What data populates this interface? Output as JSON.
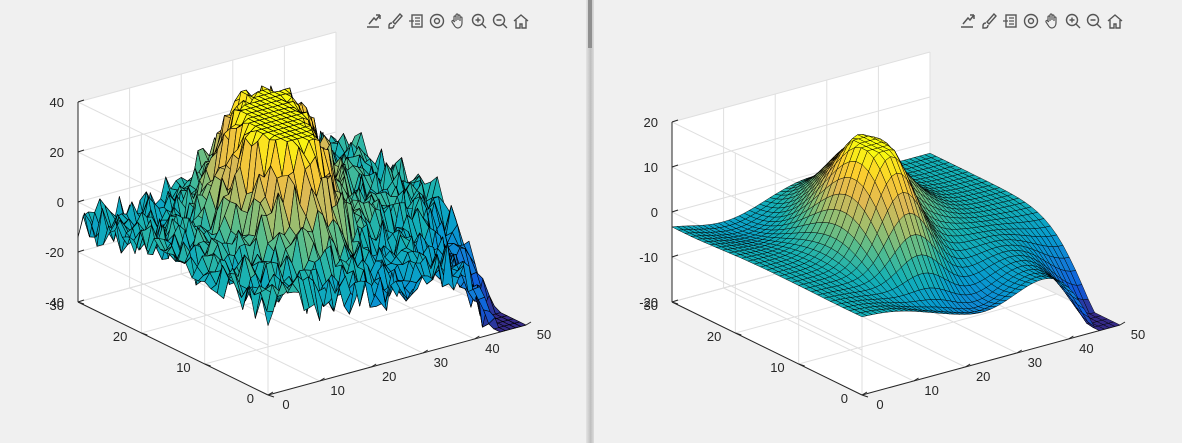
{
  "window": {
    "toolbar_icons": [
      "export-icon",
      "brush-icon",
      "data-tips-icon",
      "rotate-3d-icon",
      "pan-icon",
      "zoom-in-icon",
      "zoom-out-icon",
      "home-icon"
    ]
  },
  "chart_data": [
    {
      "type": "surface",
      "title": "",
      "xlabel": "",
      "ylabel": "",
      "zlabel": "",
      "xlim": [
        0,
        50
      ],
      "ylim": [
        0,
        30
      ],
      "zlim": [
        -40,
        40
      ],
      "x_ticks": [
        "0",
        "10",
        "20",
        "30",
        "40",
        "50"
      ],
      "y_ticks": [
        "0",
        "10",
        "20",
        "30"
      ],
      "z_ticks": [
        "-40",
        "-20",
        "0",
        "20",
        "40"
      ],
      "grid": true,
      "colormap": "parula",
      "edge_color": "#000000",
      "surface": "noisy",
      "mesh_size": [
        50,
        30
      ],
      "z_range_shown": [
        -33,
        35
      ],
      "peaks": [
        {
          "x": 19,
          "y": 13,
          "z": 35
        },
        {
          "x": 27,
          "y": 21,
          "z": 28
        }
      ],
      "low_corner": {
        "x": 50,
        "y": 0,
        "z": -33
      }
    },
    {
      "type": "surface",
      "title": "",
      "xlabel": "",
      "ylabel": "",
      "zlabel": "",
      "xlim": [
        0,
        50
      ],
      "ylim": [
        0,
        30
      ],
      "zlim": [
        -20,
        20
      ],
      "x_ticks": [
        "0",
        "10",
        "20",
        "30",
        "40",
        "50"
      ],
      "y_ticks": [
        "0",
        "10",
        "20",
        "30"
      ],
      "z_ticks": [
        "-20",
        "-10",
        "0",
        "10",
        "20"
      ],
      "grid": true,
      "colormap": "parula",
      "edge_color": "#000000",
      "surface": "smooth",
      "mesh_size": [
        50,
        30
      ],
      "z_range_shown": [
        -21,
        20
      ],
      "peaks": [
        {
          "x": 19,
          "y": 13,
          "z": 20
        },
        {
          "x": 27,
          "y": 21,
          "z": 14
        }
      ],
      "low_corner": {
        "x": 50,
        "y": 0,
        "z": -21
      }
    }
  ]
}
